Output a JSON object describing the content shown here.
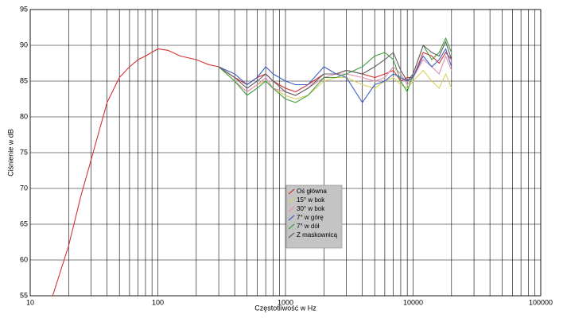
{
  "chart_data": {
    "type": "line",
    "xlabel": "Częstotliwość w Hz",
    "ylabel": "Ciśnienie w dB",
    "x": [
      15,
      20,
      25,
      30,
      40,
      50,
      60,
      70,
      80,
      100,
      120,
      150,
      200,
      250,
      300,
      400,
      500,
      600,
      700,
      800,
      1000,
      1200,
      1500,
      2000,
      2500,
      3000,
      4000,
      5000,
      6000,
      7000,
      8000,
      9000,
      10000,
      12000,
      14000,
      16000,
      18000,
      20000
    ],
    "series": [
      {
        "name": "Oś główna",
        "color": "#d83030",
        "values": [
          55,
          62,
          69,
          74,
          82,
          85.5,
          87,
          88,
          88.5,
          89.5,
          89.3,
          88.5,
          88,
          87.3,
          87,
          85.5,
          84.5,
          85.5,
          86,
          85,
          84,
          83.5,
          84.5,
          86,
          86,
          86.5,
          86,
          85.5,
          86,
          86.5,
          85,
          85.5,
          85.5,
          89,
          88.5,
          87.5,
          89,
          88
        ]
      },
      {
        "name": "15° w bok",
        "color": "#d8d060",
        "values": [
          null,
          null,
          null,
          null,
          null,
          null,
          null,
          null,
          null,
          null,
          null,
          null,
          null,
          null,
          87,
          85,
          83.5,
          84.5,
          85,
          84,
          83,
          82.5,
          83,
          85,
          85.5,
          85.5,
          84.5,
          84,
          85,
          85.5,
          84.5,
          84,
          85,
          86.5,
          85,
          84,
          86,
          84
        ]
      },
      {
        "name": "30° w bok",
        "color": "#e090b0",
        "values": [
          null,
          null,
          null,
          null,
          null,
          null,
          null,
          null,
          null,
          null,
          null,
          null,
          null,
          null,
          87,
          85,
          83.5,
          84.5,
          85.5,
          84,
          83.5,
          83,
          84,
          85.5,
          86,
          86,
          85.5,
          85,
          85.5,
          87,
          86,
          84.5,
          85.5,
          88,
          87,
          86,
          88.5,
          86.5
        ]
      },
      {
        "name": "7° w górę",
        "color": "#4060c8",
        "values": [
          null,
          null,
          null,
          null,
          null,
          null,
          null,
          null,
          null,
          null,
          null,
          null,
          null,
          null,
          87,
          86,
          84.5,
          85.5,
          87,
          86,
          85,
          84.5,
          84.5,
          87,
          86,
          85.5,
          82,
          84.5,
          85,
          86,
          85.5,
          85,
          85.5,
          88.5,
          87,
          88,
          89.5,
          87
        ]
      },
      {
        "name": "7° w dół",
        "color": "#40a040",
        "values": [
          null,
          null,
          null,
          null,
          null,
          null,
          null,
          null,
          null,
          null,
          null,
          null,
          null,
          null,
          87,
          85,
          83,
          84,
          85,
          84,
          82.5,
          82,
          83,
          85.5,
          85.5,
          86,
          87,
          88.5,
          89,
          88,
          85,
          83.5,
          86,
          90,
          88,
          89,
          91,
          89
        ]
      },
      {
        "name": "Z maskownicą",
        "color": "#606060",
        "values": [
          null,
          null,
          null,
          null,
          null,
          null,
          null,
          null,
          null,
          null,
          null,
          null,
          null,
          null,
          87,
          85.5,
          84,
          85,
          86,
          85,
          83.5,
          83,
          84,
          86,
          86,
          86.5,
          86,
          87,
          88,
          89,
          86.5,
          85,
          86,
          90,
          89,
          88.5,
          90.5,
          88
        ]
      }
    ],
    "xscale": "log",
    "xlim": [
      10,
      100000
    ],
    "xticks": [
      10,
      100,
      1000,
      10000,
      100000
    ],
    "xminorticks": [
      20,
      30,
      40,
      50,
      60,
      70,
      80,
      90,
      200,
      300,
      400,
      500,
      600,
      700,
      800,
      900,
      2000,
      3000,
      4000,
      5000,
      6000,
      7000,
      8000,
      9000,
      20000,
      30000,
      40000,
      50000,
      60000,
      70000,
      80000,
      90000
    ],
    "ylim": [
      55,
      95
    ],
    "yticks": [
      55,
      60,
      65,
      70,
      75,
      80,
      85,
      90,
      95
    ],
    "grid": true,
    "legend": "center"
  }
}
